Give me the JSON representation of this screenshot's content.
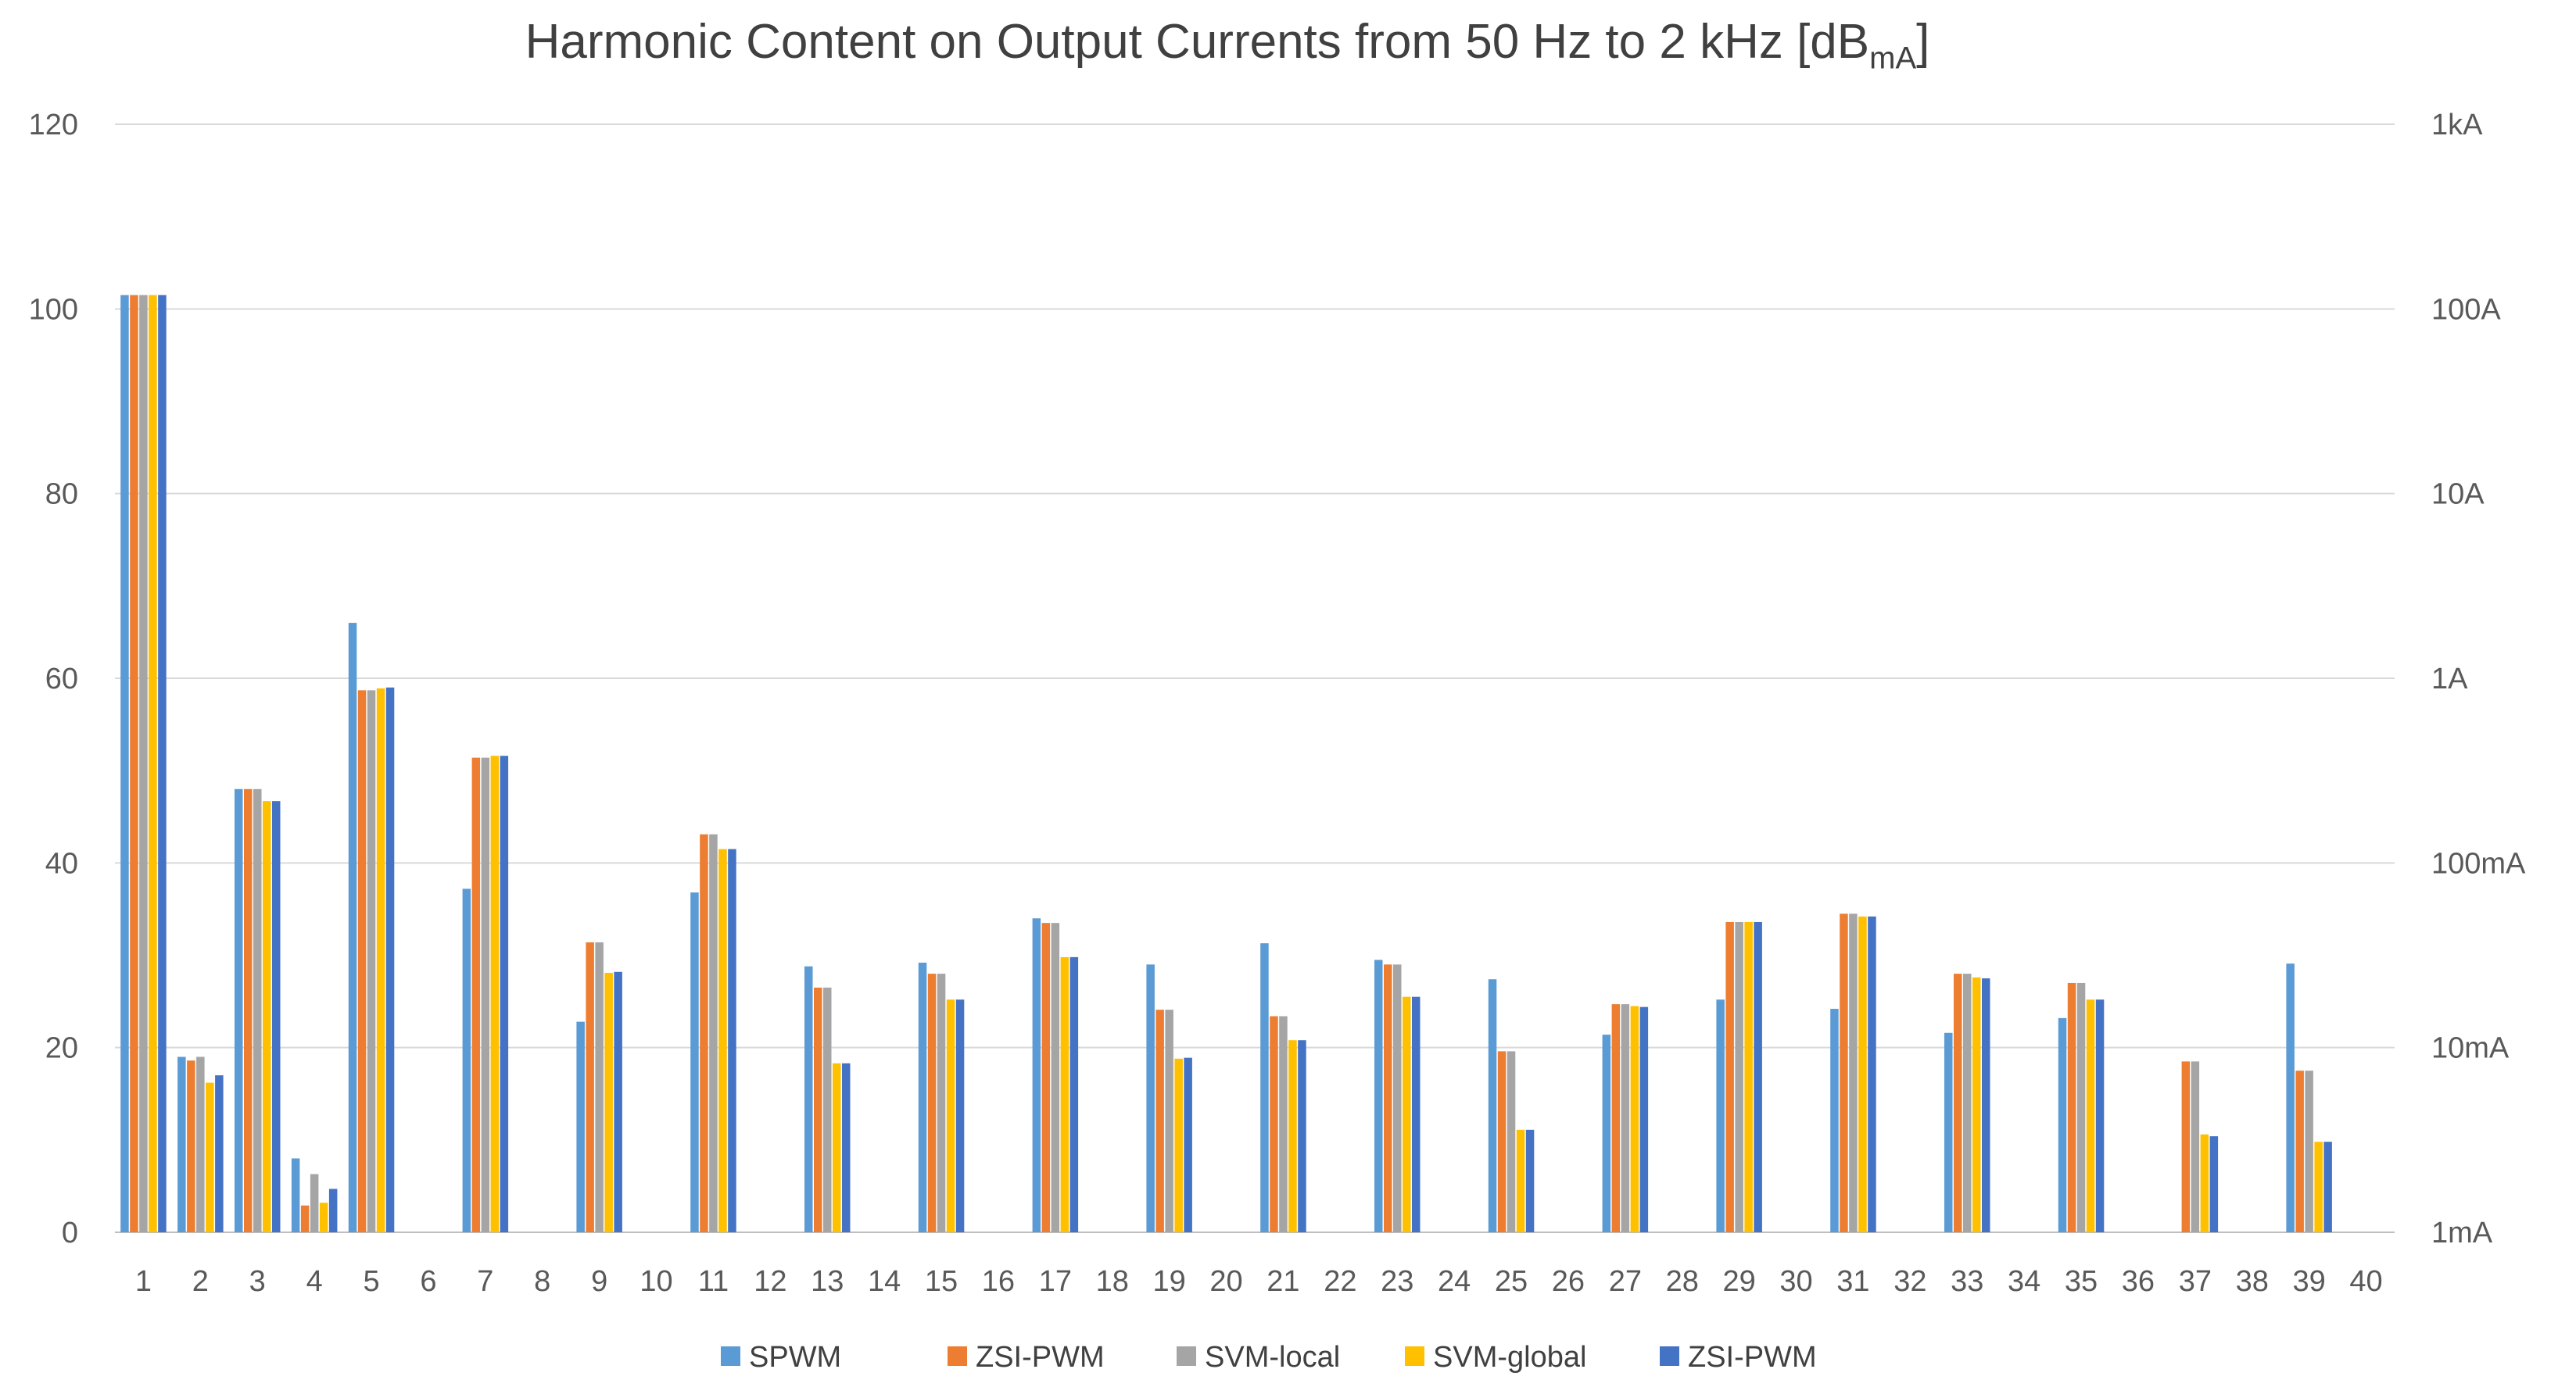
{
  "chart_data": {
    "type": "bar",
    "title": "Harmonic Content on Output Currents from 50 Hz to 2 kHz [dB",
    "title_subscript": "mA",
    "title_suffix": "]",
    "xlabel": "",
    "ylabel": "",
    "ylim": [
      0,
      120
    ],
    "yticks": [
      "0",
      "20",
      "40",
      "60",
      "80",
      "100",
      "120"
    ],
    "y2ticks": [
      "1mA",
      "10mA",
      "100mA",
      "1A",
      "10A",
      "100A",
      "1kA"
    ],
    "grid": true,
    "legend_position": "bottom",
    "categories": [
      "1",
      "2",
      "3",
      "4",
      "5",
      "6",
      "7",
      "8",
      "9",
      "10",
      "11",
      "12",
      "13",
      "14",
      "15",
      "16",
      "17",
      "18",
      "19",
      "20",
      "21",
      "22",
      "23",
      "24",
      "25",
      "26",
      "27",
      "28",
      "29",
      "30",
      "31",
      "32",
      "33",
      "34",
      "35",
      "36",
      "37",
      "38",
      "39",
      "40"
    ],
    "series": [
      {
        "name": "SPWM",
        "color": "#5B9BD5",
        "values": [
          101.5,
          19.0,
          48.0,
          8.0,
          66.0,
          null,
          37.2,
          null,
          22.8,
          null,
          36.8,
          null,
          28.8,
          null,
          29.2,
          null,
          34.0,
          null,
          29.0,
          null,
          31.3,
          null,
          29.5,
          null,
          27.4,
          null,
          21.4,
          null,
          25.2,
          null,
          24.2,
          null,
          21.6,
          null,
          23.2,
          null,
          null,
          null,
          29.1,
          null
        ]
      },
      {
        "name": "ZSI-PWM",
        "color": "#ED7D31",
        "values": [
          101.5,
          18.6,
          48.0,
          2.9,
          58.7,
          null,
          51.4,
          null,
          31.4,
          null,
          43.1,
          null,
          26.5,
          null,
          28.0,
          null,
          33.5,
          null,
          24.1,
          null,
          23.4,
          null,
          29.0,
          null,
          19.6,
          null,
          24.7,
          null,
          33.6,
          null,
          34.5,
          null,
          28.0,
          null,
          27.0,
          null,
          18.5,
          null,
          17.5,
          null
        ]
      },
      {
        "name": "SVM-local",
        "color": "#A5A5A5",
        "values": [
          101.5,
          19.0,
          48.0,
          6.3,
          58.7,
          null,
          51.4,
          null,
          31.4,
          null,
          43.1,
          null,
          26.5,
          null,
          28.0,
          null,
          33.5,
          null,
          24.1,
          null,
          23.4,
          null,
          29.0,
          null,
          19.6,
          null,
          24.7,
          null,
          33.6,
          null,
          34.5,
          null,
          28.0,
          null,
          27.0,
          null,
          18.5,
          null,
          17.5,
          null
        ]
      },
      {
        "name": "SVM-global",
        "color": "#FFC000",
        "values": [
          101.5,
          16.2,
          46.7,
          3.2,
          58.9,
          null,
          51.6,
          null,
          28.1,
          null,
          41.5,
          null,
          18.3,
          null,
          25.2,
          null,
          29.8,
          null,
          18.8,
          null,
          20.8,
          null,
          25.5,
          null,
          11.1,
          null,
          24.5,
          null,
          33.6,
          null,
          34.2,
          null,
          27.6,
          null,
          25.2,
          null,
          10.6,
          null,
          9.8,
          null
        ]
      },
      {
        "name": "ZSI-PWM",
        "color": "#4472C4",
        "values": [
          101.5,
          17.0,
          46.7,
          4.7,
          59.0,
          null,
          51.6,
          null,
          28.2,
          null,
          41.5,
          null,
          18.3,
          null,
          25.2,
          null,
          29.8,
          null,
          18.9,
          null,
          20.8,
          null,
          25.5,
          null,
          11.1,
          null,
          24.4,
          null,
          33.6,
          null,
          34.2,
          null,
          27.5,
          null,
          25.2,
          null,
          10.4,
          null,
          9.8,
          null
        ]
      }
    ]
  }
}
